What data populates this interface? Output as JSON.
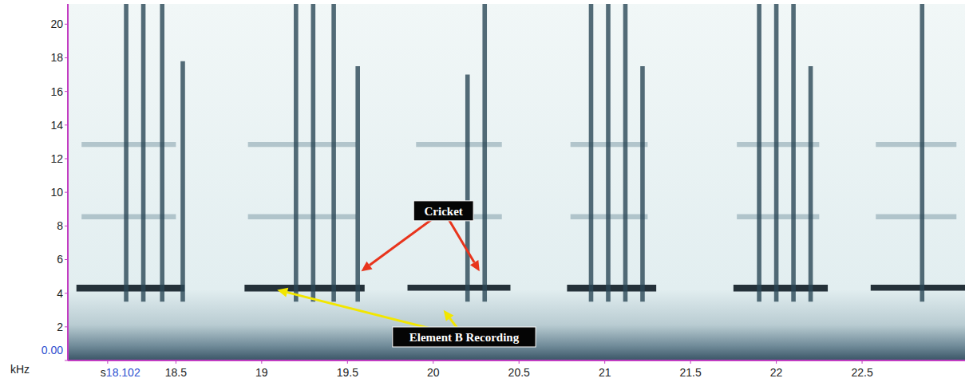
{
  "chart_data": {
    "type": "spectrogram",
    "x_label": "s",
    "y_label": "kHz",
    "xlim": [
      17.87,
      23.1
    ],
    "xticks": [
      18.102,
      18.5,
      19,
      19.5,
      20,
      20.5,
      21,
      21.5,
      22,
      22.5
    ],
    "ylim": [
      0,
      21.2
    ],
    "yticks": [
      {
        "value": 0,
        "label": "0.00"
      },
      2,
      4,
      6,
      8,
      10,
      12,
      14,
      16,
      18,
      20
    ],
    "tones": [
      {
        "start": 17.92,
        "end": 18.55,
        "low": 4.1,
        "high": 4.5
      },
      {
        "start": 18.9,
        "end": 19.6,
        "low": 4.1,
        "high": 4.5
      },
      {
        "start": 19.85,
        "end": 20.45,
        "low": 4.15,
        "high": 4.5
      },
      {
        "start": 20.78,
        "end": 21.3,
        "low": 4.1,
        "high": 4.5
      },
      {
        "start": 21.75,
        "end": 22.3,
        "low": 4.1,
        "high": 4.5
      },
      {
        "start": 22.55,
        "end": 23.1,
        "low": 4.15,
        "high": 4.5
      }
    ],
    "harmonics": [
      {
        "start": 17.95,
        "end": 18.5,
        "low": 8.4,
        "high": 8.7
      },
      {
        "start": 17.95,
        "end": 18.5,
        "low": 12.7,
        "high": 13.0
      },
      {
        "start": 18.92,
        "end": 19.55,
        "low": 8.4,
        "high": 8.7
      },
      {
        "start": 18.92,
        "end": 19.55,
        "low": 12.7,
        "high": 13.0
      },
      {
        "start": 19.9,
        "end": 20.4,
        "low": 8.4,
        "high": 8.7
      },
      {
        "start": 19.9,
        "end": 20.4,
        "low": 12.7,
        "high": 13.0
      },
      {
        "start": 20.8,
        "end": 21.25,
        "low": 8.4,
        "high": 8.7
      },
      {
        "start": 20.8,
        "end": 21.25,
        "low": 12.7,
        "high": 13.0
      },
      {
        "start": 21.77,
        "end": 22.25,
        "low": 8.4,
        "high": 8.7
      },
      {
        "start": 21.77,
        "end": 22.25,
        "low": 12.7,
        "high": 13.0
      },
      {
        "start": 22.58,
        "end": 23.05,
        "low": 8.4,
        "high": 8.7
      },
      {
        "start": 22.58,
        "end": 23.05,
        "low": 12.7,
        "high": 13.0
      }
    ],
    "pulses": [
      {
        "time": 18.21,
        "low": 3.5,
        "high": 21.2
      },
      {
        "time": 18.31,
        "low": 3.5,
        "high": 21.2
      },
      {
        "time": 18.42,
        "low": 3.5,
        "high": 21.2
      },
      {
        "time": 18.54,
        "low": 3.5,
        "high": 17.8
      },
      {
        "time": 19.2,
        "low": 3.5,
        "high": 21.2
      },
      {
        "time": 19.3,
        "low": 3.5,
        "high": 21.2
      },
      {
        "time": 19.42,
        "low": 3.5,
        "high": 21.2
      },
      {
        "time": 19.56,
        "low": 3.5,
        "high": 17.5
      },
      {
        "time": 20.2,
        "low": 3.5,
        "high": 17.0
      },
      {
        "time": 20.3,
        "low": 3.5,
        "high": 21.2
      },
      {
        "time": 20.92,
        "low": 3.5,
        "high": 21.2
      },
      {
        "time": 21.02,
        "low": 3.5,
        "high": 21.2
      },
      {
        "time": 21.12,
        "low": 3.5,
        "high": 21.2
      },
      {
        "time": 21.22,
        "low": 3.5,
        "high": 17.5
      },
      {
        "time": 21.9,
        "low": 3.5,
        "high": 21.2
      },
      {
        "time": 22.0,
        "low": 3.5,
        "high": 21.2
      },
      {
        "time": 22.1,
        "low": 3.5,
        "high": 21.2
      },
      {
        "time": 22.2,
        "low": 3.5,
        "high": 17.5
      },
      {
        "time": 22.85,
        "low": 3.5,
        "high": 21.2
      }
    ],
    "annotations": [
      {
        "text": "Cricket",
        "x": 20.06,
        "y": 8.9,
        "color": "#e8341c",
        "targets": [
          {
            "x": 19.58,
            "y": 5.3
          },
          {
            "x": 20.27,
            "y": 5.3
          }
        ]
      },
      {
        "text": "Element B Recording",
        "x": 20.18,
        "y": 1.4,
        "color": "#f2e600",
        "targets": [
          {
            "x": 19.09,
            "y": 4.2
          },
          {
            "x": 20.06,
            "y": 3.0
          }
        ]
      }
    ]
  }
}
